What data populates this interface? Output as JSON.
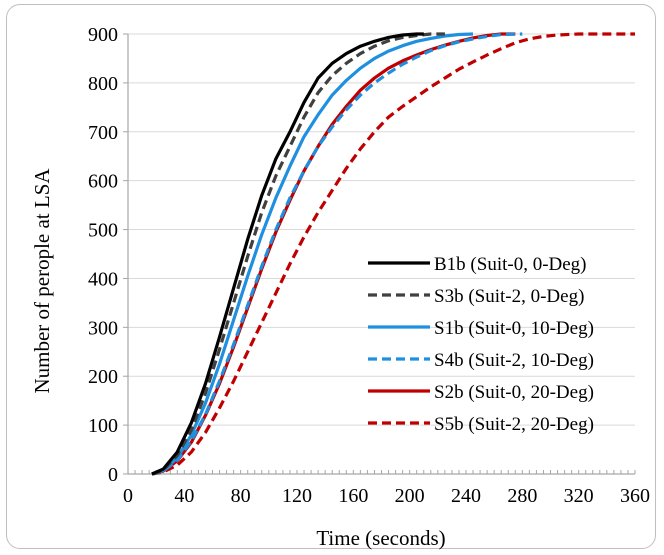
{
  "chart_data": {
    "type": "line",
    "title": "",
    "xlabel": "Time (seconds)",
    "ylabel": "Number of perople at LSA",
    "xlim": [
      0,
      360
    ],
    "ylim": [
      0,
      900
    ],
    "x_ticks": [
      0,
      40,
      80,
      120,
      160,
      200,
      240,
      280,
      320,
      360
    ],
    "y_ticks": [
      0,
      100,
      200,
      300,
      400,
      500,
      600,
      700,
      800,
      900
    ],
    "grid": "horizontal",
    "legend_position": "bottom-right",
    "series": [
      {
        "name": "B1b (Suit-0, 0-Deg)",
        "color": "#000000",
        "dash": "solid",
        "x": [
          17,
          25,
          35,
          45,
          55,
          65,
          75,
          85,
          95,
          105,
          115,
          125,
          135,
          145,
          155,
          165,
          175,
          185,
          195,
          205,
          210
        ],
        "y": [
          0,
          10,
          45,
          105,
          185,
          280,
          380,
          480,
          570,
          645,
          700,
          760,
          810,
          840,
          860,
          875,
          885,
          893,
          898,
          900,
          900
        ]
      },
      {
        "name": "S3b (Suit-2, 0-Deg)",
        "color": "#404040",
        "dash": "dashed",
        "x": [
          17,
          25,
          35,
          45,
          55,
          65,
          75,
          85,
          95,
          105,
          115,
          125,
          135,
          145,
          155,
          165,
          175,
          185,
          195,
          205,
          215,
          225
        ],
        "y": [
          0,
          8,
          38,
          90,
          165,
          255,
          350,
          445,
          535,
          610,
          670,
          730,
          780,
          815,
          840,
          860,
          875,
          886,
          893,
          897,
          900,
          900
        ]
      },
      {
        "name": "S1b (Suit-0, 10-Deg)",
        "color": "#1f8fe0",
        "dash": "solid",
        "x": [
          17,
          25,
          35,
          45,
          55,
          65,
          75,
          85,
          95,
          105,
          115,
          125,
          135,
          145,
          155,
          165,
          175,
          185,
          195,
          205,
          215,
          225,
          235,
          245
        ],
        "y": [
          0,
          7,
          33,
          80,
          145,
          225,
          315,
          405,
          490,
          565,
          630,
          690,
          735,
          775,
          805,
          830,
          850,
          865,
          876,
          885,
          891,
          896,
          899,
          900
        ]
      },
      {
        "name": "S4b (Suit-2, 10-Deg)",
        "color": "#1f8fe0",
        "dash": "dashed",
        "x": [
          17,
          25,
          35,
          45,
          55,
          65,
          75,
          85,
          95,
          105,
          115,
          125,
          135,
          145,
          155,
          165,
          175,
          185,
          195,
          205,
          215,
          225,
          235,
          245,
          255,
          265,
          280
        ],
        "y": [
          0,
          6,
          28,
          68,
          122,
          190,
          265,
          345,
          425,
          500,
          565,
          620,
          670,
          710,
          745,
          775,
          800,
          820,
          838,
          853,
          866,
          876,
          884,
          890,
          895,
          899,
          900
        ]
      },
      {
        "name": "S2b (Suit-0, 20-Deg)",
        "color": "#c00000",
        "dash": "solid",
        "x": [
          17,
          25,
          35,
          45,
          55,
          65,
          75,
          85,
          95,
          105,
          115,
          125,
          135,
          145,
          155,
          165,
          175,
          185,
          195,
          205,
          215,
          225,
          235,
          245,
          255,
          265,
          275
        ],
        "y": [
          0,
          6,
          27,
          65,
          120,
          185,
          260,
          340,
          420,
          495,
          560,
          620,
          670,
          715,
          752,
          785,
          810,
          830,
          845,
          857,
          868,
          877,
          885,
          892,
          897,
          900,
          900
        ]
      },
      {
        "name": "S5b (Suit-2, 20-Deg)",
        "color": "#c00000",
        "dash": "dashed",
        "x": [
          17,
          25,
          35,
          45,
          55,
          65,
          75,
          85,
          95,
          105,
          115,
          125,
          135,
          145,
          155,
          165,
          175,
          185,
          195,
          205,
          215,
          225,
          235,
          245,
          255,
          265,
          275,
          285,
          295,
          305,
          320,
          340,
          360
        ],
        "y": [
          0,
          4,
          18,
          45,
          85,
          135,
          190,
          250,
          310,
          370,
          430,
          485,
          535,
          580,
          625,
          665,
          700,
          730,
          752,
          772,
          792,
          810,
          828,
          843,
          857,
          870,
          882,
          890,
          895,
          898,
          900,
          900,
          900
        ]
      }
    ]
  }
}
